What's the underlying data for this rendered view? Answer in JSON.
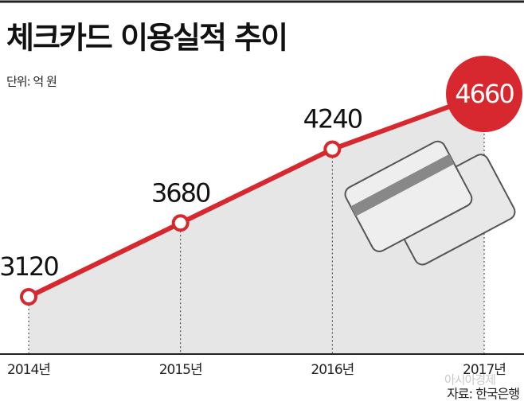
{
  "chart_data": {
    "type": "line",
    "title": "체크카드 이용실적 추이",
    "subtitle": "단위: 억 원",
    "categories": [
      "2014년",
      "2015년",
      "2016년",
      "2017년"
    ],
    "series": [
      {
        "name": "체크카드 이용실적",
        "color": "#d7282f",
        "values": [
          3120,
          3680,
          4240,
          4660
        ]
      }
    ],
    "source": "자료: 한국은행",
    "watermark": "아시아경제"
  }
}
